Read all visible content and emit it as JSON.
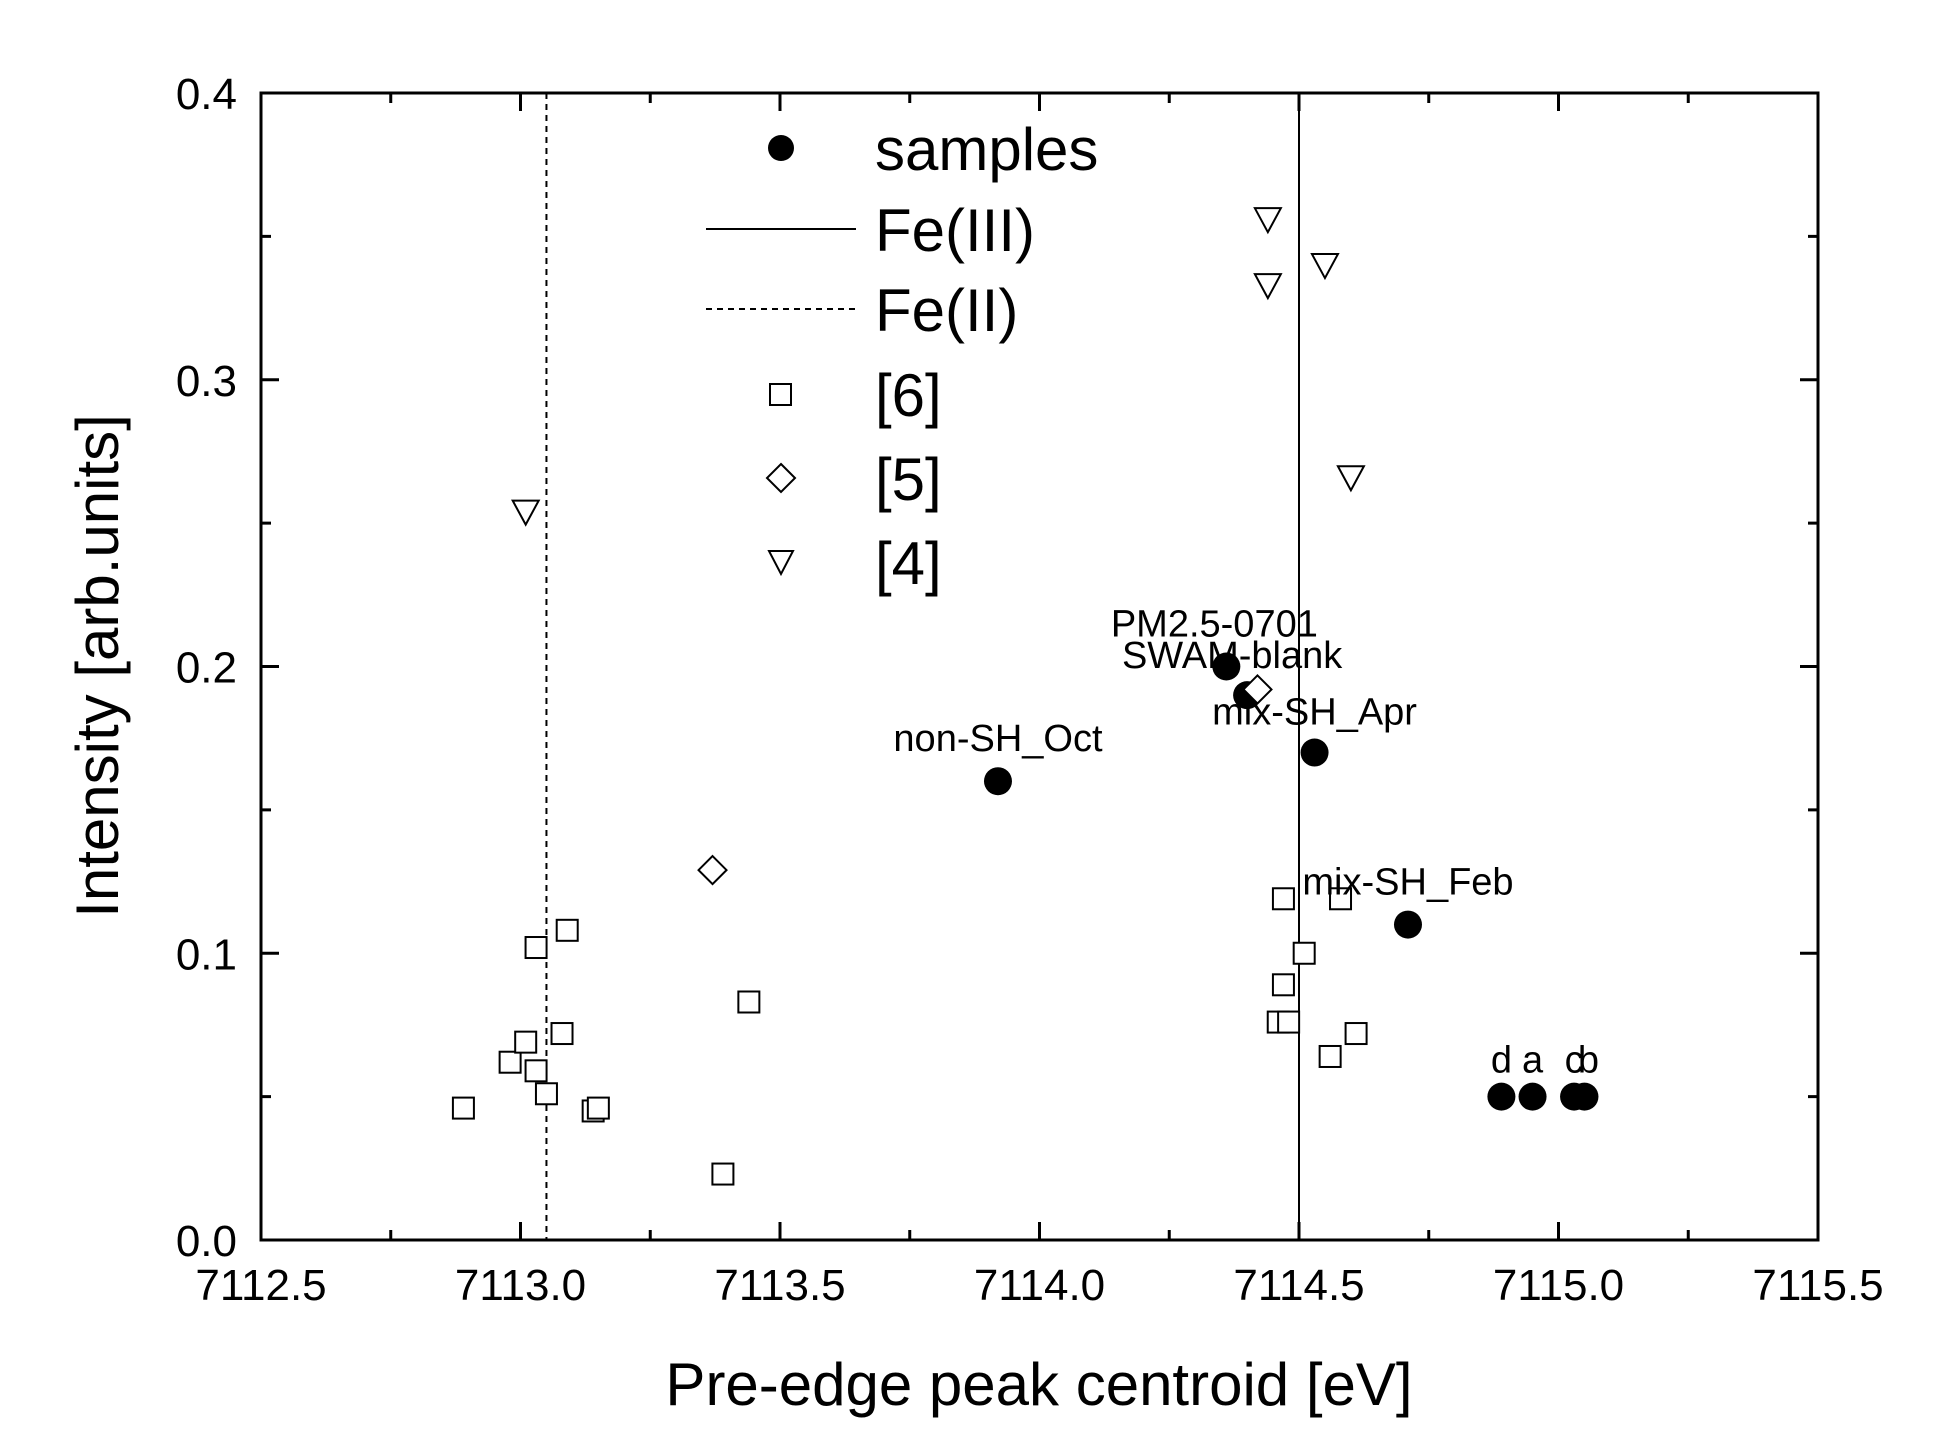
{
  "chart_data": {
    "type": "scatter",
    "xlabel": "Pre-edge peak centroid [eV]",
    "ylabel": "Intensity [arb.units]",
    "xlim": [
      7112.5,
      7115.5
    ],
    "ylim": [
      0.0,
      0.4
    ],
    "x_ticks": [
      "7112.5",
      "7113.0",
      "7113.5",
      "7114.0",
      "7114.5",
      "7115.0",
      "7115.5"
    ],
    "y_ticks": [
      "0.0",
      "0.1",
      "0.2",
      "0.3",
      "0.4"
    ],
    "grid": false,
    "legend_position": "top-center",
    "legend": {
      "samples": "samples",
      "fe3": "Fe(III)",
      "fe2": "Fe(II)",
      "ref6": "[6]",
      "ref5": "[5]",
      "ref4": "[4]"
    },
    "reference_lines": [
      {
        "name": "Fe(III)",
        "x": 7114.5,
        "style": "solid"
      },
      {
        "name": "Fe(II)",
        "x": 7113.05,
        "style": "dashed"
      }
    ],
    "series": [
      {
        "name": "samples",
        "marker": "filled-circle",
        "points": [
          {
            "x": 7113.92,
            "y": 0.16,
            "label": "non-SH_Oct"
          },
          {
            "x": 7114.36,
            "y": 0.2,
            "label": "PM2.5-0701"
          },
          {
            "x": 7114.4,
            "y": 0.19,
            "label": "SWAM-blank"
          },
          {
            "x": 7114.53,
            "y": 0.17,
            "label": "mix-SH_Apr"
          },
          {
            "x": 7114.71,
            "y": 0.11,
            "label": "mix-SH_Feb"
          },
          {
            "x": 7114.89,
            "y": 0.05,
            "label": "d"
          },
          {
            "x": 7114.95,
            "y": 0.05,
            "label": "a"
          },
          {
            "x": 7115.03,
            "y": 0.05,
            "label": "c"
          },
          {
            "x": 7115.05,
            "y": 0.05,
            "label": "b"
          }
        ]
      },
      {
        "name": "[6]",
        "marker": "open-square",
        "points": [
          {
            "x": 7112.89,
            "y": 0.046
          },
          {
            "x": 7112.98,
            "y": 0.062
          },
          {
            "x": 7113.01,
            "y": 0.069
          },
          {
            "x": 7113.03,
            "y": 0.059
          },
          {
            "x": 7113.03,
            "y": 0.102
          },
          {
            "x": 7113.05,
            "y": 0.051
          },
          {
            "x": 7113.08,
            "y": 0.072
          },
          {
            "x": 7113.09,
            "y": 0.108
          },
          {
            "x": 7113.14,
            "y": 0.045
          },
          {
            "x": 7113.15,
            "y": 0.046
          },
          {
            "x": 7113.39,
            "y": 0.023
          },
          {
            "x": 7113.44,
            "y": 0.083
          },
          {
            "x": 7114.46,
            "y": 0.076
          },
          {
            "x": 7114.47,
            "y": 0.089
          },
          {
            "x": 7114.47,
            "y": 0.119
          },
          {
            "x": 7114.48,
            "y": 0.076
          },
          {
            "x": 7114.51,
            "y": 0.1
          },
          {
            "x": 7114.56,
            "y": 0.064
          },
          {
            "x": 7114.58,
            "y": 0.119
          },
          {
            "x": 7114.61,
            "y": 0.072
          }
        ]
      },
      {
        "name": "[5]",
        "marker": "open-diamond",
        "points": [
          {
            "x": 7113.37,
            "y": 0.129
          },
          {
            "x": 7114.42,
            "y": 0.192
          }
        ]
      },
      {
        "name": "[4]",
        "marker": "open-triangle-down",
        "points": [
          {
            "x": 7113.01,
            "y": 0.254
          },
          {
            "x": 7114.44,
            "y": 0.356
          },
          {
            "x": 7114.44,
            "y": 0.333
          },
          {
            "x": 7114.55,
            "y": 0.34
          },
          {
            "x": 7114.6,
            "y": 0.266
          }
        ]
      }
    ]
  }
}
